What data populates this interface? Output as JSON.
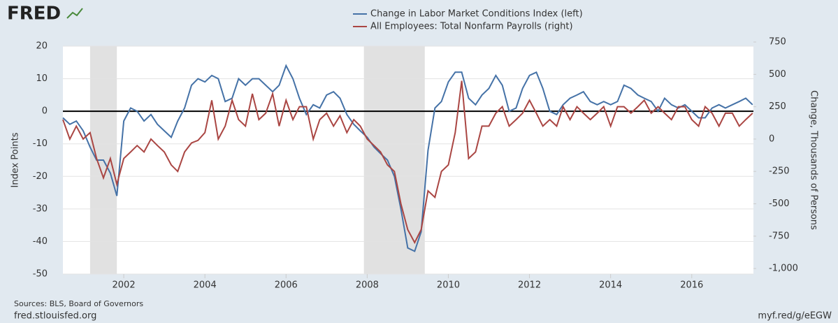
{
  "brand": "FRED",
  "sources": "Sources: BLS, Board of Governors",
  "site": "fred.stlouisfed.org",
  "short_link": "myf.red/g/eEGW",
  "chart_data": {
    "type": "line",
    "ylabel": "Index Points",
    "y2label": "Change, Thousands of Persons",
    "xlim": [
      2000.5,
      2017.52
    ],
    "xticks": [
      2002,
      2004,
      2006,
      2008,
      2010,
      2012,
      2014,
      2016
    ],
    "ylim": [
      -50,
      20
    ],
    "yticks": [
      -50,
      -40,
      -30,
      -20,
      -10,
      0,
      10,
      20
    ],
    "y2lim": [
      -1043,
      718
    ],
    "y2ticks": [
      {
        "value": -1000,
        "label": "-1,000"
      },
      -750,
      -500,
      -250,
      0,
      250,
      500,
      750
    ],
    "grid": true,
    "zero_line": 0,
    "shaded_ranges": [
      [
        2001.17,
        2001.83
      ],
      [
        2007.92,
        2009.42
      ]
    ],
    "x": [
      2000.5,
      2000.67,
      2000.83,
      2001,
      2001.17,
      2001.33,
      2001.5,
      2001.67,
      2001.83,
      2002,
      2002.17,
      2002.33,
      2002.5,
      2002.67,
      2002.83,
      2003,
      2003.17,
      2003.33,
      2003.5,
      2003.67,
      2003.83,
      2004,
      2004.17,
      2004.33,
      2004.5,
      2004.67,
      2004.83,
      2005,
      2005.17,
      2005.33,
      2005.5,
      2005.67,
      2005.83,
      2006,
      2006.17,
      2006.33,
      2006.5,
      2006.67,
      2006.83,
      2007,
      2007.17,
      2007.33,
      2007.5,
      2007.67,
      2007.83,
      2008,
      2008.17,
      2008.33,
      2008.5,
      2008.67,
      2008.83,
      2009,
      2009.17,
      2009.33,
      2009.5,
      2009.67,
      2009.83,
      2010,
      2010.17,
      2010.33,
      2010.5,
      2010.67,
      2010.83,
      2011,
      2011.17,
      2011.33,
      2011.5,
      2011.67,
      2011.83,
      2012,
      2012.17,
      2012.33,
      2012.5,
      2012.67,
      2012.83,
      2013,
      2013.17,
      2013.33,
      2013.5,
      2013.67,
      2013.83,
      2014,
      2014.17,
      2014.33,
      2014.5,
      2014.67,
      2014.83,
      2015,
      2015.17,
      2015.33,
      2015.5,
      2015.67,
      2015.83,
      2016,
      2016.17,
      2016.33,
      2016.5,
      2016.67,
      2016.83,
      2017,
      2017.17,
      2017.33,
      2017.5
    ],
    "series": [
      {
        "name": "Change in Labor Market Conditions Index (left)",
        "color": "#4572a7",
        "axis": "y",
        "values": [
          -2,
          -4,
          -3,
          -6,
          -11,
          -15,
          -15,
          -19,
          -26,
          -3,
          1,
          0,
          -3,
          -1,
          -4,
          -6,
          -8,
          -3,
          1,
          8,
          10,
          9,
          11,
          10,
          3,
          4,
          10,
          8,
          10,
          10,
          8,
          6,
          8,
          14,
          10,
          4,
          -1,
          2,
          1,
          5,
          6,
          4,
          -1,
          -4,
          -6,
          -8,
          -11,
          -13,
          -15,
          -20,
          -30,
          -42,
          -43,
          -37,
          -12,
          1,
          3,
          9,
          12,
          12,
          4,
          2,
          5,
          7,
          11,
          8,
          0,
          1,
          7,
          11,
          12,
          7,
          0,
          -1,
          2,
          4,
          5,
          6,
          3,
          2,
          3,
          2,
          3,
          8,
          7,
          5,
          4,
          3,
          0,
          4,
          2,
          1,
          2,
          0,
          -2,
          -2,
          1,
          2,
          1,
          2,
          3,
          4,
          2
        ]
      },
      {
        "name": "All Employees: Total Nonfarm Payrolls (right)",
        "color": "#aa4643",
        "axis": "y2",
        "values": [
          150,
          0,
          100,
          0,
          50,
          -150,
          -300,
          -150,
          -350,
          -150,
          -100,
          -50,
          -100,
          0,
          -50,
          -100,
          -200,
          -250,
          -100,
          -30,
          -10,
          50,
          300,
          0,
          100,
          300,
          150,
          100,
          350,
          150,
          200,
          350,
          100,
          300,
          150,
          250,
          250,
          0,
          150,
          200,
          100,
          180,
          50,
          150,
          100,
          0,
          -50,
          -100,
          -200,
          -250,
          -500,
          -700,
          -800,
          -700,
          -400,
          -450,
          -250,
          -200,
          50,
          450,
          -150,
          -100,
          100,
          100,
          200,
          250,
          100,
          150,
          200,
          300,
          200,
          100,
          150,
          100,
          250,
          150,
          250,
          200,
          150,
          200,
          250,
          100,
          250,
          250,
          200,
          250,
          300,
          200,
          250,
          200,
          150,
          250,
          250,
          150,
          100,
          250,
          200,
          100,
          200,
          200,
          100,
          150,
          200
        ]
      }
    ]
  }
}
